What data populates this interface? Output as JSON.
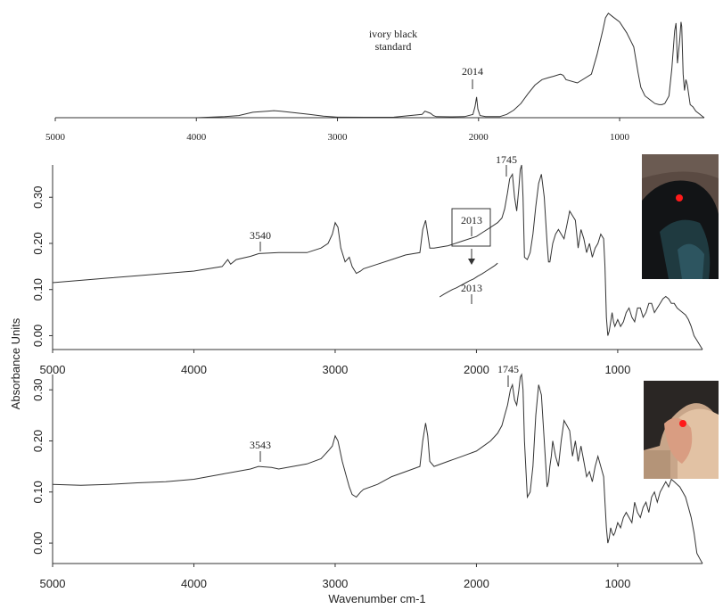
{
  "figure": {
    "ylabel": "Absorbance Units",
    "xlabel": "Wavenumber cm-1"
  },
  "chart_data": [
    {
      "type": "line",
      "id": "standard",
      "xlim": [
        5000,
        400
      ],
      "xticks": [
        5000,
        4000,
        3000,
        2000,
        1000
      ],
      "yticks": [],
      "annotations": [
        {
          "text": "ivory black",
          "x": 2014,
          "role": "label1"
        },
        {
          "text": "standard",
          "x": 2014,
          "role": "label2"
        },
        {
          "text": "2014",
          "x": 2014,
          "role": "peak"
        }
      ],
      "series": [
        {
          "color": "#333333",
          "x": [
            5000,
            4500,
            4000,
            3800,
            3700,
            3600,
            3500,
            3450,
            3400,
            3300,
            3200,
            3100,
            3000,
            2800,
            2600,
            2400,
            2380,
            2360,
            2340,
            2320,
            2300,
            2200,
            2100,
            2040,
            2025,
            2014,
            2005,
            1990,
            1950,
            1850,
            1800,
            1750,
            1700,
            1650,
            1600,
            1550,
            1500,
            1470,
            1420,
            1400,
            1380,
            1300,
            1200,
            1160,
            1120,
            1100,
            1080,
            1060,
            1040,
            1000,
            950,
            900,
            880,
            870,
            850,
            820,
            800,
            780,
            750,
            720,
            700,
            680,
            650,
            630,
            610,
            600,
            590,
            575,
            565,
            560,
            550,
            540,
            530,
            520,
            500,
            480,
            460,
            440,
            420,
            400
          ],
          "y": [
            0.0,
            0.0,
            0.0,
            0.01,
            0.02,
            0.05,
            0.06,
            0.065,
            0.06,
            0.045,
            0.03,
            0.015,
            0.005,
            0.004,
            0.005,
            0.03,
            0.06,
            0.05,
            0.04,
            0.02,
            0.01,
            0.008,
            0.01,
            0.03,
            0.1,
            0.19,
            0.08,
            0.02,
            0.01,
            0.01,
            0.03,
            0.07,
            0.13,
            0.22,
            0.3,
            0.35,
            0.37,
            0.38,
            0.4,
            0.39,
            0.35,
            0.32,
            0.4,
            0.58,
            0.8,
            0.92,
            0.96,
            0.94,
            0.92,
            0.88,
            0.78,
            0.65,
            0.5,
            0.42,
            0.28,
            0.2,
            0.18,
            0.16,
            0.13,
            0.12,
            0.12,
            0.13,
            0.2,
            0.45,
            0.8,
            0.87,
            0.5,
            0.7,
            0.88,
            0.84,
            0.4,
            0.25,
            0.35,
            0.3,
            0.12,
            0.1,
            0.06,
            0.04,
            0.02,
            0.0
          ],
          "ylim": [
            0,
            1
          ]
        }
      ]
    },
    {
      "type": "line",
      "id": "sample1",
      "xlim": [
        5000,
        400
      ],
      "ylim": [
        -0.03,
        0.37
      ],
      "xticks": [
        5000,
        4000,
        3000,
        2000,
        1000
      ],
      "yticks": [
        0.0,
        0.1,
        0.2,
        0.3
      ],
      "ytick_labels": [
        "0.00",
        "0.10",
        "0.20",
        "0.30"
      ],
      "annotations": [
        {
          "text": "3540",
          "x": 3540,
          "role": "peak"
        },
        {
          "text": "1745",
          "x": 1745,
          "role": "peak"
        },
        {
          "text": "2013",
          "x": 2013,
          "role": "box"
        },
        {
          "text": "2013",
          "x": 2013,
          "role": "inset"
        }
      ],
      "series": [
        {
          "color": "#333333",
          "x": [
            5000,
            4800,
            4600,
            4400,
            4200,
            4000,
            3800,
            3760,
            3740,
            3700,
            3600,
            3540,
            3400,
            3200,
            3100,
            3050,
            3020,
            3000,
            2980,
            2960,
            2930,
            2900,
            2880,
            2850,
            2820,
            2800,
            2700,
            2600,
            2500,
            2400,
            2380,
            2360,
            2345,
            2330,
            2300,
            2200,
            2100,
            2000,
            1950,
            1900,
            1850,
            1820,
            1800,
            1780,
            1765,
            1745,
            1730,
            1715,
            1700,
            1690,
            1680,
            1670,
            1660,
            1640,
            1620,
            1600,
            1580,
            1560,
            1540,
            1520,
            1500,
            1490,
            1480,
            1470,
            1460,
            1440,
            1420,
            1400,
            1380,
            1360,
            1340,
            1320,
            1300,
            1280,
            1260,
            1240,
            1220,
            1200,
            1180,
            1160,
            1140,
            1120,
            1100,
            1090,
            1080,
            1070,
            1060,
            1050,
            1040,
            1030,
            1020,
            1000,
            980,
            960,
            940,
            920,
            900,
            880,
            860,
            840,
            820,
            800,
            780,
            760,
            740,
            720,
            700,
            680,
            660,
            640,
            620,
            600,
            580,
            560,
            540,
            520,
            500,
            480,
            460,
            440,
            420,
            400
          ],
          "y": [
            0.115,
            0.12,
            0.125,
            0.13,
            0.135,
            0.14,
            0.15,
            0.165,
            0.155,
            0.165,
            0.172,
            0.178,
            0.18,
            0.18,
            0.19,
            0.2,
            0.22,
            0.245,
            0.235,
            0.19,
            0.16,
            0.17,
            0.15,
            0.135,
            0.14,
            0.145,
            0.155,
            0.165,
            0.175,
            0.18,
            0.23,
            0.25,
            0.22,
            0.19,
            0.19,
            0.195,
            0.205,
            0.215,
            0.225,
            0.235,
            0.245,
            0.255,
            0.275,
            0.31,
            0.34,
            0.35,
            0.3,
            0.27,
            0.32,
            0.36,
            0.37,
            0.3,
            0.17,
            0.165,
            0.18,
            0.22,
            0.28,
            0.33,
            0.35,
            0.3,
            0.2,
            0.16,
            0.16,
            0.18,
            0.2,
            0.22,
            0.23,
            0.22,
            0.21,
            0.24,
            0.27,
            0.26,
            0.25,
            0.19,
            0.23,
            0.21,
            0.18,
            0.2,
            0.17,
            0.19,
            0.2,
            0.22,
            0.21,
            0.15,
            0.04,
            0.0,
            0.01,
            0.03,
            0.05,
            0.03,
            0.02,
            0.035,
            0.02,
            0.03,
            0.05,
            0.06,
            0.04,
            0.03,
            0.06,
            0.06,
            0.04,
            0.05,
            0.07,
            0.07,
            0.05,
            0.06,
            0.07,
            0.08,
            0.085,
            0.08,
            0.07,
            0.07,
            0.06,
            0.055,
            0.05,
            0.045,
            0.035,
            0.02,
            0.0,
            -0.01,
            -0.02,
            -0.03
          ]
        },
        {
          "name": "",
          "color": "#333333",
          "role": "inset-curve",
          "x": [
            2260,
            2230,
            2200,
            2170,
            2140,
            2110,
            2080,
            2050,
            2020,
            1990,
            1960,
            1930,
            1900,
            1870,
            1850
          ],
          "y": [
            0.084,
            0.09,
            0.095,
            0.1,
            0.104,
            0.109,
            0.114,
            0.119,
            0.123,
            0.129,
            0.134,
            0.14,
            0.146,
            0.152,
            0.157
          ]
        }
      ]
    },
    {
      "type": "line",
      "id": "sample2",
      "xlim": [
        5000,
        400
      ],
      "ylim": [
        -0.04,
        0.33
      ],
      "xticks": [
        5000,
        4000,
        3000,
        2000,
        1000
      ],
      "yticks": [
        0.0,
        0.1,
        0.2,
        0.3
      ],
      "ytick_labels": [
        "0.00",
        "0.10",
        "0.20",
        "0.30"
      ],
      "annotations": [
        {
          "text": "3543",
          "x": 3543,
          "role": "peak"
        },
        {
          "text": "1745",
          "x": 1745,
          "role": "peak"
        }
      ],
      "series": [
        {
          "color": "#333333",
          "x": [
            5000,
            4800,
            4600,
            4400,
            4200,
            4000,
            3900,
            3800,
            3700,
            3600,
            3543,
            3450,
            3400,
            3300,
            3200,
            3100,
            3050,
            3020,
            3000,
            2980,
            2950,
            2920,
            2900,
            2880,
            2850,
            2820,
            2800,
            2700,
            2600,
            2500,
            2400,
            2380,
            2360,
            2345,
            2330,
            2300,
            2200,
            2100,
            2000,
            1950,
            1900,
            1850,
            1820,
            1800,
            1780,
            1760,
            1745,
            1730,
            1715,
            1700,
            1690,
            1680,
            1670,
            1660,
            1640,
            1620,
            1600,
            1580,
            1560,
            1540,
            1520,
            1500,
            1490,
            1480,
            1470,
            1460,
            1440,
            1420,
            1400,
            1380,
            1360,
            1340,
            1320,
            1300,
            1280,
            1260,
            1240,
            1220,
            1200,
            1180,
            1160,
            1140,
            1120,
            1100,
            1090,
            1080,
            1070,
            1060,
            1050,
            1040,
            1030,
            1020,
            1000,
            980,
            960,
            940,
            920,
            900,
            880,
            860,
            840,
            820,
            800,
            780,
            760,
            740,
            720,
            700,
            680,
            660,
            640,
            620,
            600,
            580,
            560,
            540,
            520,
            500,
            480,
            460,
            440,
            420,
            400
          ],
          "y": [
            0.115,
            0.113,
            0.115,
            0.118,
            0.12,
            0.125,
            0.13,
            0.135,
            0.14,
            0.145,
            0.15,
            0.148,
            0.145,
            0.15,
            0.155,
            0.165,
            0.18,
            0.19,
            0.21,
            0.2,
            0.16,
            0.13,
            0.11,
            0.095,
            0.09,
            0.1,
            0.105,
            0.115,
            0.13,
            0.14,
            0.15,
            0.2,
            0.235,
            0.21,
            0.16,
            0.15,
            0.16,
            0.17,
            0.18,
            0.19,
            0.2,
            0.215,
            0.23,
            0.25,
            0.27,
            0.3,
            0.31,
            0.28,
            0.27,
            0.3,
            0.325,
            0.33,
            0.3,
            0.2,
            0.09,
            0.1,
            0.15,
            0.25,
            0.31,
            0.29,
            0.2,
            0.11,
            0.12,
            0.15,
            0.17,
            0.2,
            0.17,
            0.15,
            0.2,
            0.24,
            0.23,
            0.22,
            0.17,
            0.2,
            0.16,
            0.19,
            0.16,
            0.13,
            0.14,
            0.12,
            0.15,
            0.17,
            0.15,
            0.13,
            0.08,
            0.03,
            0.0,
            0.01,
            0.03,
            0.02,
            0.015,
            0.02,
            0.04,
            0.03,
            0.05,
            0.06,
            0.05,
            0.04,
            0.08,
            0.06,
            0.05,
            0.07,
            0.08,
            0.06,
            0.09,
            0.1,
            0.08,
            0.1,
            0.11,
            0.12,
            0.11,
            0.125,
            0.12,
            0.115,
            0.11,
            0.1,
            0.09,
            0.07,
            0.05,
            0.02,
            -0.02,
            -0.03,
            -0.04
          ]
        }
      ]
    }
  ]
}
